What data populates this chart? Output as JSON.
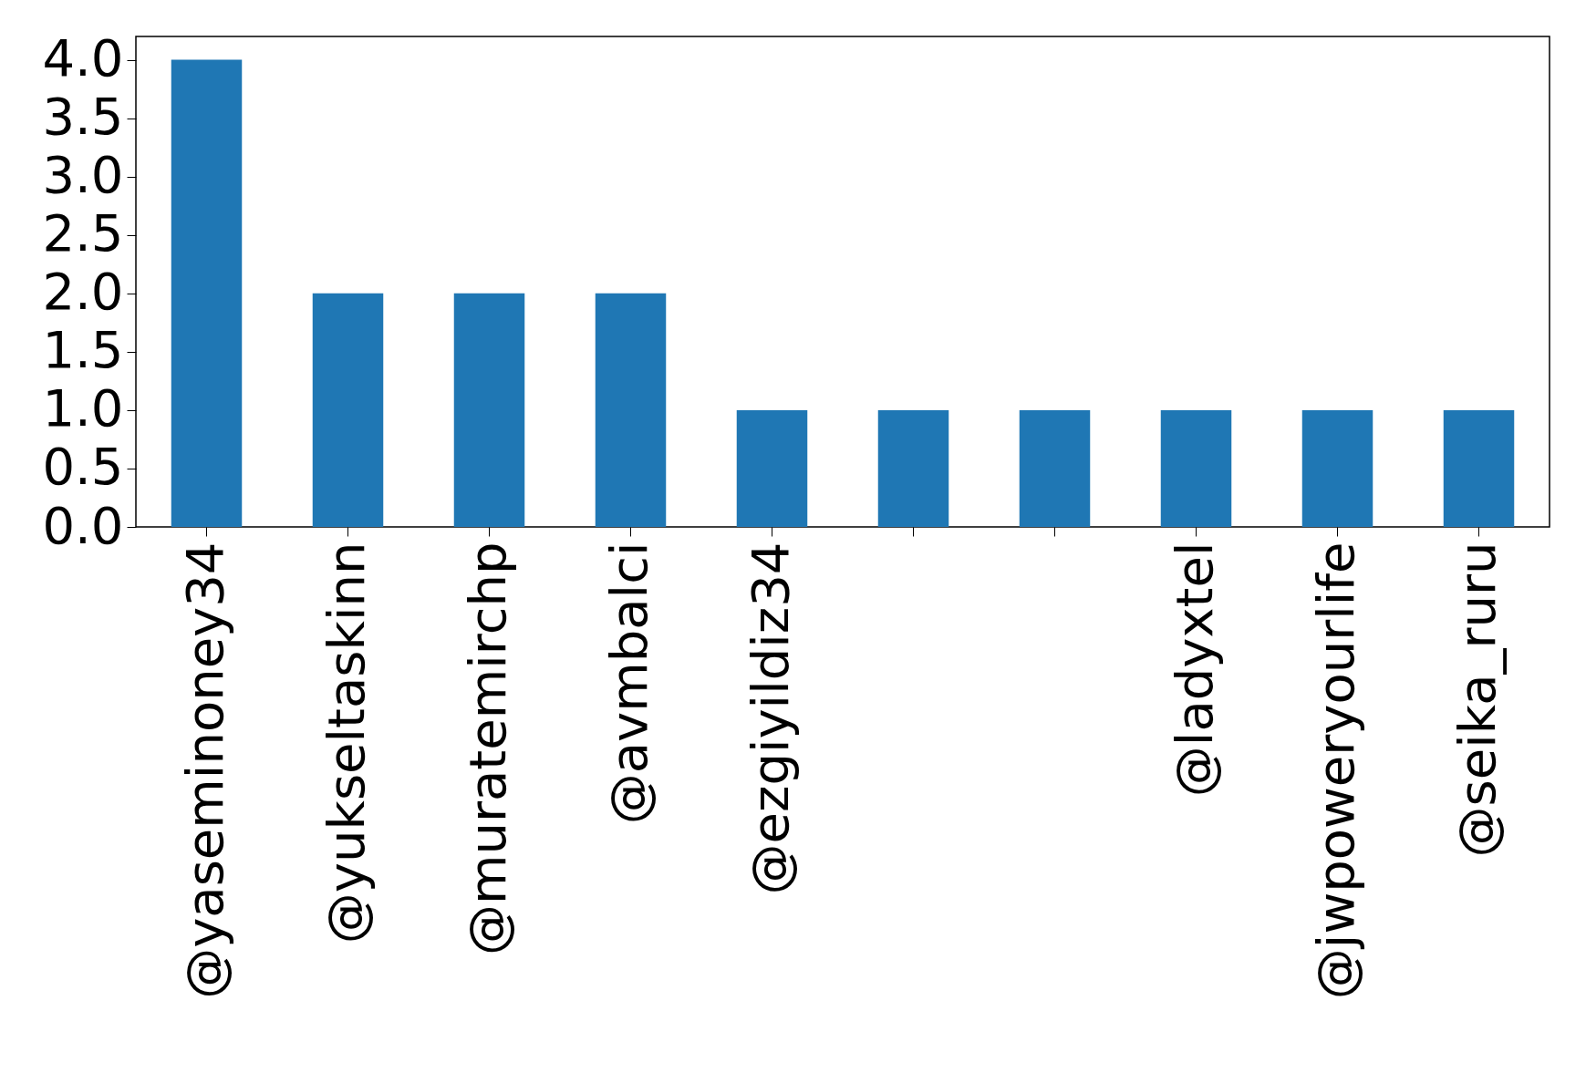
{
  "chart_data": {
    "type": "bar",
    "categories": [
      "@yaseminoney34",
      "@yukseltaskinn",
      "@muratemirchp",
      "@avmbalci",
      "@ezgiyildiz34",
      null,
      null,
      "@ladyxtel",
      "@jwpoweryourlife",
      "@seika_ruru"
    ],
    "values": [
      4,
      2,
      2,
      2,
      1,
      1,
      1,
      1,
      1,
      1
    ],
    "color": "#1f77b4",
    "ylim": [
      0,
      4.2
    ],
    "yticks": [
      {
        "value": 0,
        "label": "0.0"
      },
      {
        "value": 0.5,
        "label": "0.5"
      },
      {
        "value": 1,
        "label": "1.0"
      },
      {
        "value": 1.5,
        "label": "1.5"
      },
      {
        "value": 2,
        "label": "2.0"
      },
      {
        "value": 2.5,
        "label": "2.5"
      },
      {
        "value": 3,
        "label": "3.0"
      },
      {
        "value": 3.5,
        "label": "3.5"
      },
      {
        "value": 4,
        "label": "4.0"
      }
    ],
    "grid": false
  }
}
